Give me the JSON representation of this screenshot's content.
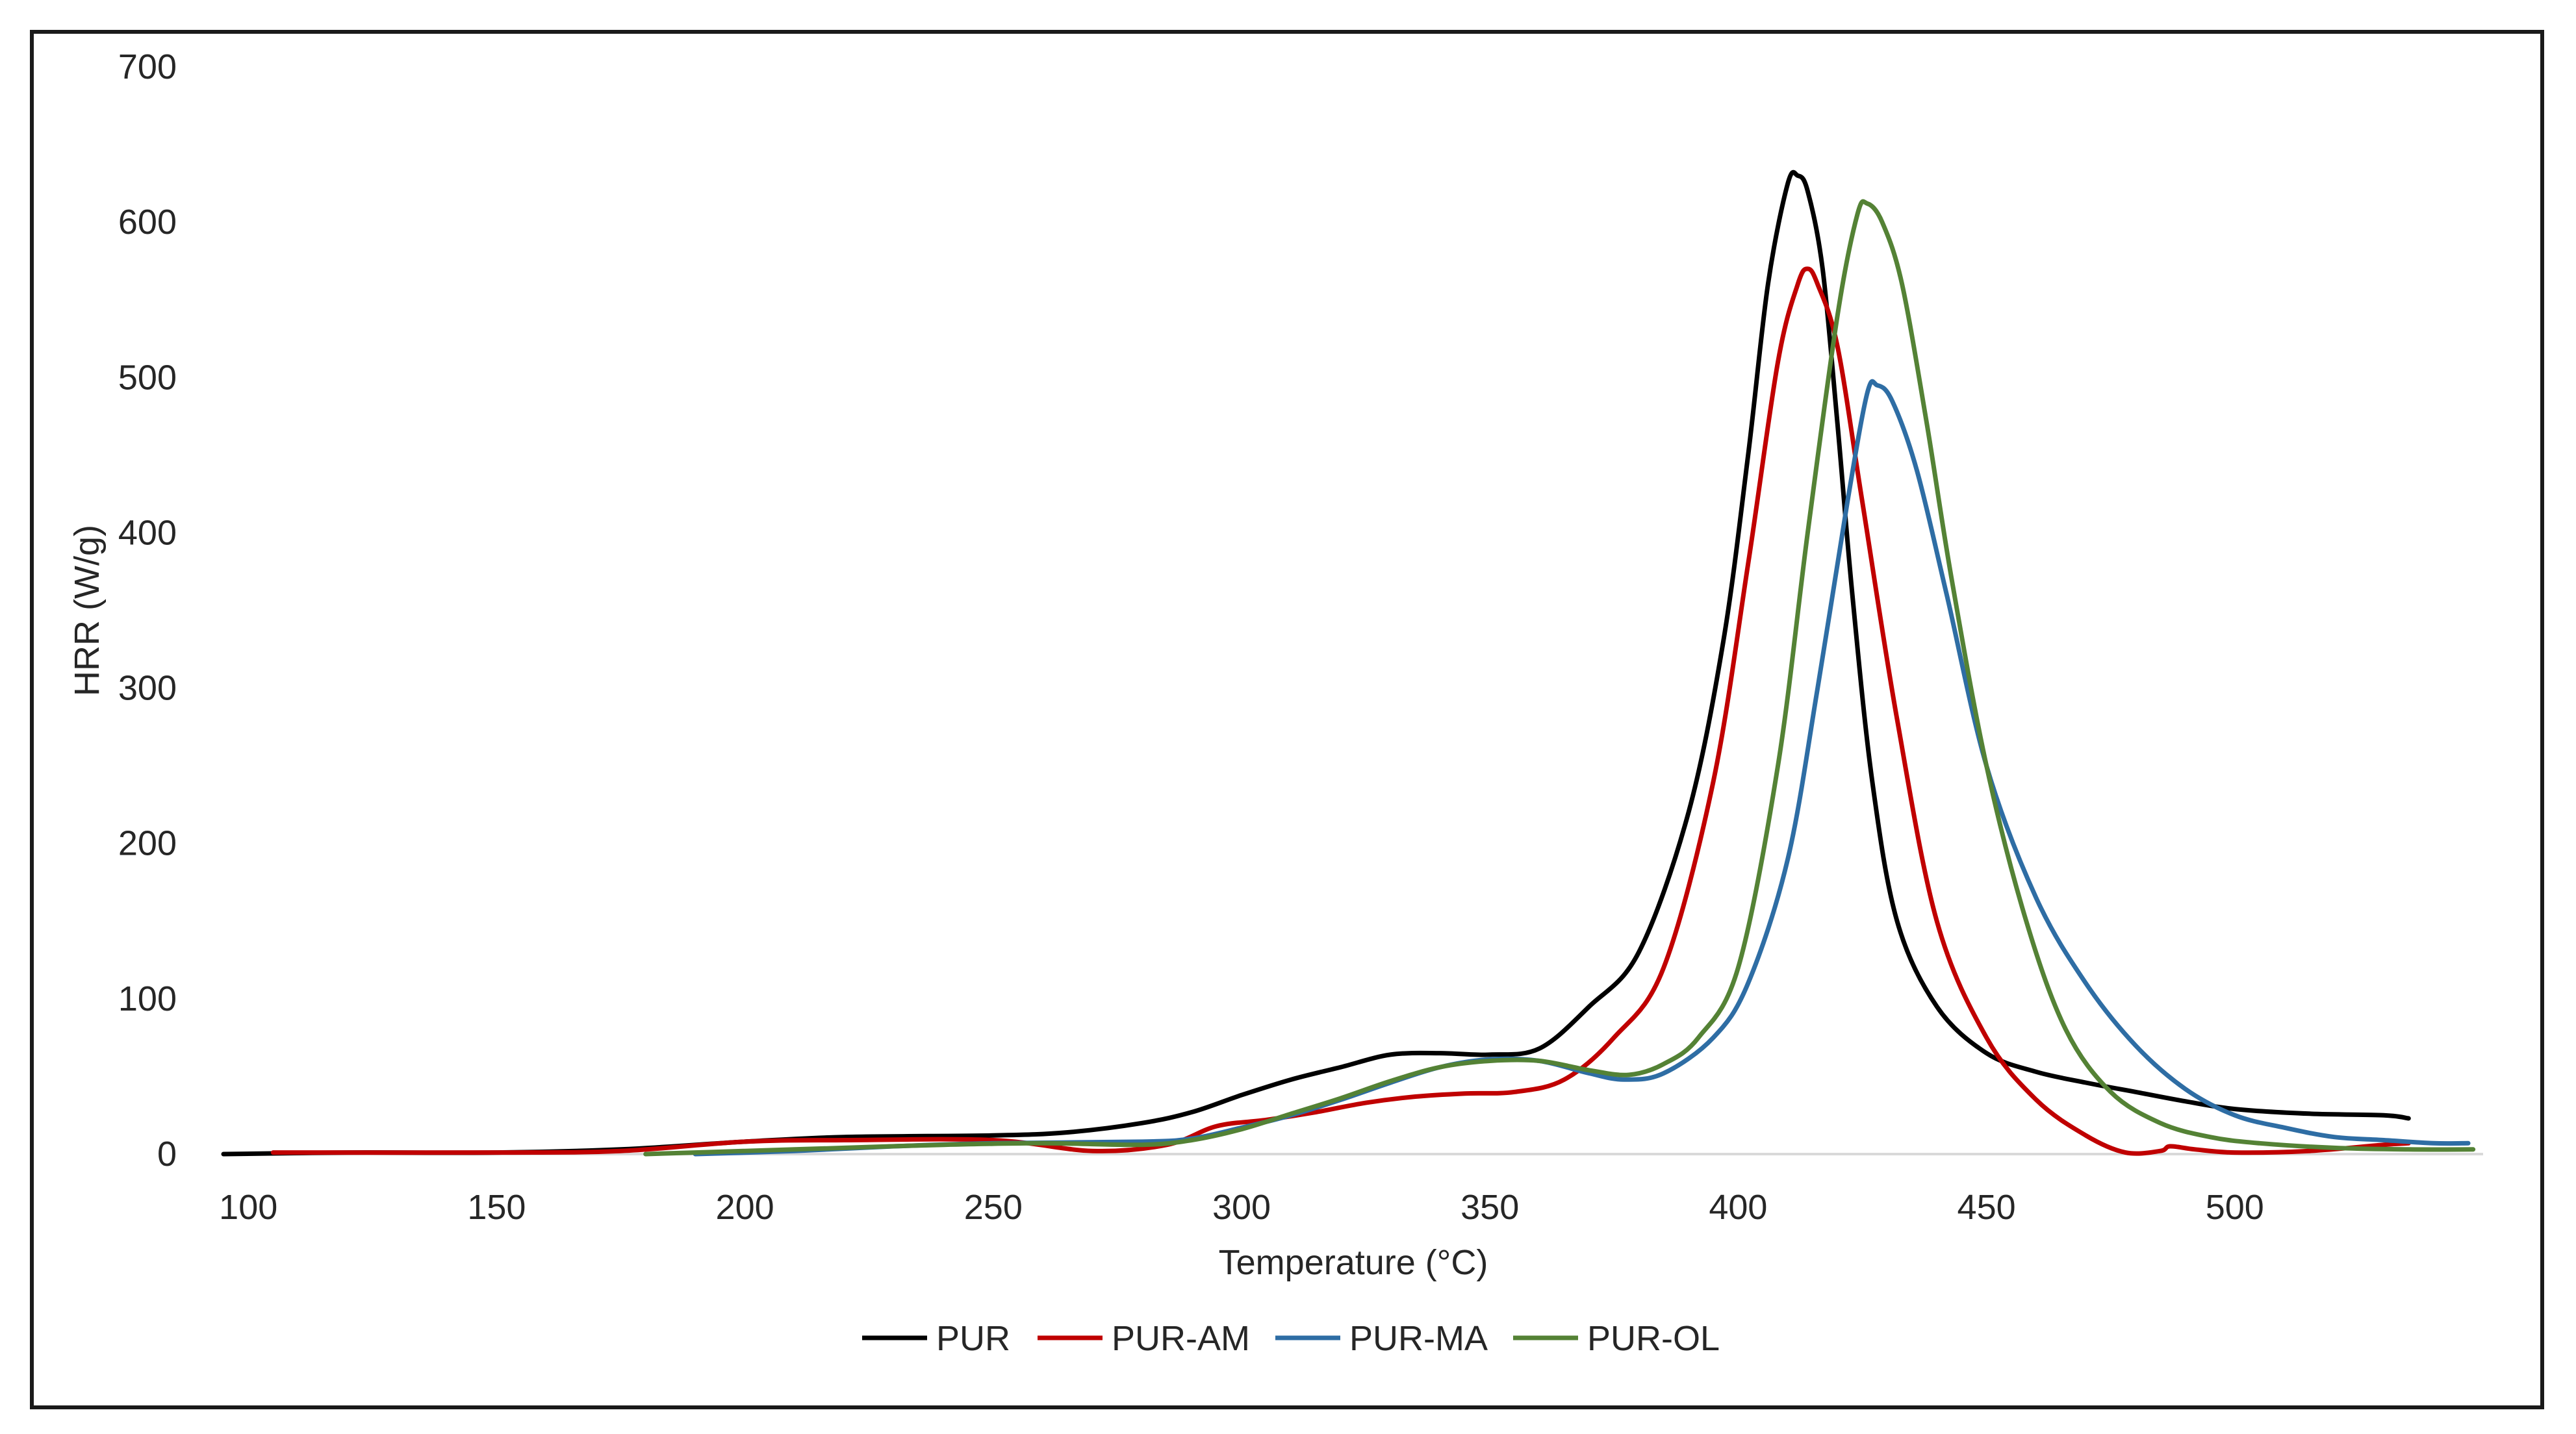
{
  "chart_data": {
    "type": "line",
    "title": "",
    "xlabel": "Temperature (°C)",
    "ylabel": "HRR (W/g)",
    "xlim": [
      95,
      550
    ],
    "ylim": [
      0,
      700
    ],
    "x_ticks": [
      100,
      150,
      200,
      250,
      300,
      350,
      400,
      450,
      500
    ],
    "y_ticks": [
      0,
      100,
      200,
      300,
      400,
      500,
      600,
      700
    ],
    "x_tick_labels": [
      "100",
      "150",
      "200",
      "250",
      "300",
      "350",
      "400",
      "450",
      "500"
    ],
    "y_tick_labels": [
      "0",
      "100",
      "200",
      "300",
      "400",
      "500",
      "600",
      "700"
    ],
    "grid": false,
    "legend_position": "bottom",
    "series": [
      {
        "name": "PUR",
        "color": "#000000",
        "points": [
          [
            95,
            0
          ],
          [
            120,
            1
          ],
          [
            150,
            1
          ],
          [
            175,
            3
          ],
          [
            200,
            8
          ],
          [
            220,
            11
          ],
          [
            250,
            12
          ],
          [
            265,
            14
          ],
          [
            280,
            20
          ],
          [
            290,
            27
          ],
          [
            300,
            38
          ],
          [
            310,
            48
          ],
          [
            320,
            56
          ],
          [
            330,
            64
          ],
          [
            340,
            65
          ],
          [
            350,
            64
          ],
          [
            360,
            68
          ],
          [
            370,
            95
          ],
          [
            380,
            130
          ],
          [
            390,
            220
          ],
          [
            397,
            330
          ],
          [
            402,
            450
          ],
          [
            406,
            560
          ],
          [
            410,
            625
          ],
          [
            412,
            630
          ],
          [
            414,
            620
          ],
          [
            417,
            570
          ],
          [
            420,
            470
          ],
          [
            423,
            360
          ],
          [
            427,
            240
          ],
          [
            432,
            150
          ],
          [
            440,
            95
          ],
          [
            450,
            65
          ],
          [
            460,
            53
          ],
          [
            470,
            46
          ],
          [
            480,
            40
          ],
          [
            490,
            34
          ],
          [
            500,
            29
          ],
          [
            515,
            26
          ],
          [
            530,
            25
          ],
          [
            535,
            23
          ]
        ]
      },
      {
        "name": "PUR-AM",
        "color": "#C00000",
        "points": [
          [
            105,
            1
          ],
          [
            150,
            1
          ],
          [
            175,
            2
          ],
          [
            200,
            8
          ],
          [
            220,
            9
          ],
          [
            250,
            9
          ],
          [
            270,
            2
          ],
          [
            285,
            6
          ],
          [
            295,
            18
          ],
          [
            305,
            22
          ],
          [
            315,
            27
          ],
          [
            325,
            33
          ],
          [
            335,
            37
          ],
          [
            345,
            39
          ],
          [
            355,
            40
          ],
          [
            365,
            48
          ],
          [
            375,
            75
          ],
          [
            385,
            120
          ],
          [
            395,
            240
          ],
          [
            402,
            380
          ],
          [
            408,
            510
          ],
          [
            412,
            560
          ],
          [
            414,
            570
          ],
          [
            416,
            560
          ],
          [
            420,
            520
          ],
          [
            425,
            420
          ],
          [
            432,
            280
          ],
          [
            440,
            150
          ],
          [
            450,
            75
          ],
          [
            460,
            35
          ],
          [
            470,
            12
          ],
          [
            478,
            1
          ],
          [
            485,
            2
          ],
          [
            487,
            5
          ],
          [
            492,
            3
          ],
          [
            500,
            1
          ],
          [
            515,
            2
          ],
          [
            530,
            6
          ],
          [
            535,
            7
          ]
        ]
      },
      {
        "name": "PUR-MA",
        "color": "#2E6DA4",
        "points": [
          [
            190,
            0
          ],
          [
            210,
            2
          ],
          [
            230,
            5
          ],
          [
            250,
            7
          ],
          [
            280,
            8
          ],
          [
            290,
            10
          ],
          [
            300,
            17
          ],
          [
            310,
            25
          ],
          [
            320,
            35
          ],
          [
            330,
            46
          ],
          [
            340,
            56
          ],
          [
            350,
            61
          ],
          [
            360,
            60
          ],
          [
            370,
            52
          ],
          [
            377,
            48
          ],
          [
            385,
            52
          ],
          [
            395,
            75
          ],
          [
            402,
            110
          ],
          [
            410,
            190
          ],
          [
            416,
            300
          ],
          [
            422,
            420
          ],
          [
            426,
            490
          ],
          [
            428,
            495
          ],
          [
            431,
            485
          ],
          [
            436,
            440
          ],
          [
            442,
            360
          ],
          [
            450,
            250
          ],
          [
            460,
            165
          ],
          [
            470,
            110
          ],
          [
            480,
            70
          ],
          [
            490,
            42
          ],
          [
            500,
            25
          ],
          [
            510,
            17
          ],
          [
            520,
            11
          ],
          [
            530,
            9
          ],
          [
            540,
            7
          ],
          [
            547,
            7
          ]
        ]
      },
      {
        "name": "PUR-OL",
        "color": "#548235",
        "points": [
          [
            180,
            0
          ],
          [
            200,
            2
          ],
          [
            220,
            4
          ],
          [
            240,
            6
          ],
          [
            260,
            7
          ],
          [
            280,
            6
          ],
          [
            290,
            9
          ],
          [
            300,
            16
          ],
          [
            310,
            26
          ],
          [
            320,
            36
          ],
          [
            330,
            47
          ],
          [
            340,
            56
          ],
          [
            350,
            60
          ],
          [
            360,
            60
          ],
          [
            370,
            54
          ],
          [
            378,
            51
          ],
          [
            385,
            58
          ],
          [
            392,
            75
          ],
          [
            400,
            120
          ],
          [
            408,
            250
          ],
          [
            414,
            400
          ],
          [
            420,
            540
          ],
          [
            424,
            605
          ],
          [
            426,
            612
          ],
          [
            429,
            600
          ],
          [
            433,
            560
          ],
          [
            438,
            470
          ],
          [
            443,
            370
          ],
          [
            450,
            250
          ],
          [
            458,
            150
          ],
          [
            466,
            80
          ],
          [
            475,
            40
          ],
          [
            485,
            20
          ],
          [
            495,
            11
          ],
          [
            505,
            7
          ],
          [
            520,
            4
          ],
          [
            535,
            3
          ],
          [
            548,
            3
          ]
        ]
      }
    ]
  }
}
